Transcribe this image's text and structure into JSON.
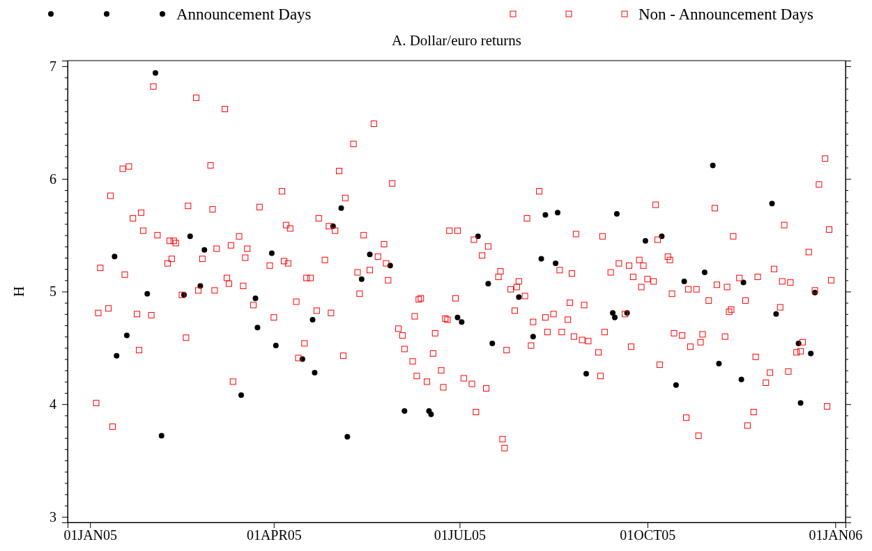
{
  "chart_data": {
    "type": "scatter",
    "title": "A. Dollar/euro returns",
    "ylabel": "H",
    "legend": "top",
    "grid": false,
    "xlim": [
      "2004-12-21",
      "2006-01-06"
    ],
    "xticks": [
      {
        "value": "2005-01-01",
        "label": "01JAN05"
      },
      {
        "value": "2005-04-01",
        "label": "01APR05"
      },
      {
        "value": "2005-07-01",
        "label": "01JUL05"
      },
      {
        "value": "2005-10-01",
        "label": "01OCT05"
      },
      {
        "value": "2006-01-01",
        "label": "01JAN06"
      }
    ],
    "ylim": [
      2.95,
      7.05
    ],
    "yticks": [
      3,
      {
        "value": 3.1,
        "label": null
      },
      {
        "value": 3.2,
        "label": null
      },
      {
        "value": 3.3,
        "label": null
      },
      {
        "value": 3.4,
        "label": null
      },
      {
        "value": 3.5,
        "label": null
      },
      {
        "value": 3.6,
        "label": null
      },
      {
        "value": 3.7,
        "label": null
      },
      {
        "value": 3.8,
        "label": null
      },
      {
        "value": 3.9,
        "label": null
      },
      4,
      {
        "value": 4.1,
        "label": null
      },
      {
        "value": 4.2,
        "label": null
      },
      {
        "value": 4.3,
        "label": null
      },
      {
        "value": 4.4,
        "label": null
      },
      {
        "value": 4.5,
        "label": null
      },
      {
        "value": 4.6,
        "label": null
      },
      {
        "value": 4.7,
        "label": null
      },
      {
        "value": 4.8,
        "label": null
      },
      {
        "value": 4.9,
        "label": null
      },
      5,
      {
        "value": 5.1,
        "label": null
      },
      {
        "value": 5.2,
        "label": null
      },
      {
        "value": 5.3,
        "label": null
      },
      {
        "value": 5.4,
        "label": null
      },
      {
        "value": 5.5,
        "label": null
      },
      {
        "value": 5.6,
        "label": null
      },
      {
        "value": 5.7,
        "label": null
      },
      {
        "value": 5.8,
        "label": null
      },
      {
        "value": 5.9,
        "label": null
      },
      6,
      {
        "value": 6.1,
        "label": null
      },
      {
        "value": 6.2,
        "label": null
      },
      {
        "value": 6.3,
        "label": null
      },
      {
        "value": 6.4,
        "label": null
      },
      {
        "value": 6.5,
        "label": null
      },
      {
        "value": 6.6,
        "label": null
      },
      {
        "value": 6.7,
        "label": null
      },
      {
        "value": 6.8,
        "label": null
      },
      {
        "value": 6.9,
        "label": null
      },
      7
    ],
    "series": [
      {
        "name": "Announcement Days",
        "color": "#000000",
        "marker": "circle",
        "x": [
          "2005-01-13",
          "2005-01-14",
          "2005-01-19",
          "2005-01-29",
          "2005-02-02",
          "2005-02-05",
          "2005-02-16",
          "2005-02-19",
          "2005-02-24",
          "2005-02-26",
          "2005-03-16",
          "2005-03-23",
          "2005-03-24",
          "2005-03-31",
          "2005-04-02",
          "2005-04-15",
          "2005-04-20",
          "2005-04-21",
          "2005-04-30",
          "2005-05-04",
          "2005-05-07",
          "2005-05-14",
          "2005-05-18",
          "2005-05-28",
          "2005-06-04",
          "2005-06-16",
          "2005-06-17",
          "2005-06-30",
          "2005-07-02",
          "2005-07-10",
          "2005-07-15",
          "2005-07-17",
          "2005-07-30",
          "2005-08-06",
          "2005-08-10",
          "2005-08-12",
          "2005-08-17",
          "2005-08-18",
          "2005-09-01",
          "2005-09-14",
          "2005-09-15",
          "2005-09-16",
          "2005-09-21",
          "2005-09-30",
          "2005-10-08",
          "2005-10-15",
          "2005-10-19",
          "2005-10-29",
          "2005-11-02",
          "2005-11-05",
          "2005-11-16",
          "2005-11-17",
          "2005-12-01",
          "2005-12-03",
          "2005-12-14",
          "2005-12-15",
          "2005-12-20",
          "2005-12-22"
        ],
        "values": [
          5.31,
          4.43,
          4.61,
          4.98,
          6.94,
          3.72,
          4.97,
          5.49,
          5.05,
          5.37,
          4.08,
          4.94,
          4.68,
          5.34,
          4.52,
          4.4,
          4.75,
          4.28,
          5.58,
          5.74,
          3.71,
          5.11,
          5.33,
          5.23,
          3.94,
          3.94,
          3.91,
          4.77,
          4.73,
          5.49,
          5.07,
          4.54,
          4.95,
          4.6,
          5.29,
          5.68,
          5.25,
          5.7,
          4.27,
          4.81,
          4.77,
          5.69,
          4.81,
          5.45,
          5.49,
          4.17,
          5.09,
          5.17,
          6.12,
          4.36,
          4.22,
          5.08,
          5.78,
          4.8,
          4.54,
          4.01,
          4.45,
          4.99
        ]
      },
      {
        "name": "Non - Announcement Days",
        "color": "#ff0000",
        "marker": "square",
        "x": [
          "2005-01-04",
          "2005-01-05",
          "2005-01-06",
          "2005-01-10",
          "2005-01-11",
          "2005-01-12",
          "2005-01-17",
          "2005-01-18",
          "2005-01-20",
          "2005-01-22",
          "2005-01-24",
          "2005-01-25",
          "2005-01-26",
          "2005-01-27",
          "2005-01-31",
          "2005-02-01",
          "2005-02-03",
          "2005-02-08",
          "2005-02-09",
          "2005-02-10",
          "2005-02-11",
          "2005-02-12",
          "2005-02-15",
          "2005-02-17",
          "2005-02-18",
          "2005-02-22",
          "2005-02-23",
          "2005-02-25",
          "2005-03-01",
          "2005-03-02",
          "2005-03-03",
          "2005-03-04",
          "2005-03-08",
          "2005-03-09",
          "2005-03-10",
          "2005-03-11",
          "2005-03-12",
          "2005-03-15",
          "2005-03-17",
          "2005-03-18",
          "2005-03-19",
          "2005-03-22",
          "2005-03-25",
          "2005-03-30",
          "2005-04-01",
          "2005-04-05",
          "2005-04-06",
          "2005-04-07",
          "2005-04-08",
          "2005-04-09",
          "2005-04-12",
          "2005-04-13",
          "2005-04-16",
          "2005-04-17",
          "2005-04-19",
          "2005-04-22",
          "2005-04-23",
          "2005-04-26",
          "2005-04-28",
          "2005-04-29",
          "2005-05-01",
          "2005-05-03",
          "2005-05-05",
          "2005-05-06",
          "2005-05-10",
          "2005-05-12",
          "2005-05-13",
          "2005-05-15",
          "2005-05-18",
          "2005-05-20",
          "2005-05-22",
          "2005-05-25",
          "2005-05-26",
          "2005-05-27",
          "2005-05-29",
          "2005-06-01",
          "2005-06-03",
          "2005-06-04",
          "2005-06-08",
          "2005-06-09",
          "2005-06-10",
          "2005-06-11",
          "2005-06-12",
          "2005-06-15",
          "2005-06-18",
          "2005-06-19",
          "2005-06-22",
          "2005-06-23",
          "2005-06-24",
          "2005-06-25",
          "2005-06-26",
          "2005-06-29",
          "2005-06-30",
          "2005-07-03",
          "2005-07-07",
          "2005-07-08",
          "2005-07-09",
          "2005-07-12",
          "2005-07-14",
          "2005-07-15",
          "2005-07-20",
          "2005-07-21",
          "2005-07-22",
          "2005-07-23",
          "2005-07-24",
          "2005-07-26",
          "2005-07-28",
          "2005-07-29",
          "2005-07-30",
          "2005-08-02",
          "2005-08-03",
          "2005-08-05",
          "2005-08-06",
          "2005-08-09",
          "2005-08-12",
          "2005-08-13",
          "2005-08-16",
          "2005-08-19",
          "2005-08-20",
          "2005-08-23",
          "2005-08-24",
          "2005-08-25",
          "2005-08-26",
          "2005-08-27",
          "2005-08-30",
          "2005-08-31",
          "2005-09-02",
          "2005-09-07",
          "2005-09-08",
          "2005-09-09",
          "2005-09-10",
          "2005-09-13",
          "2005-09-17",
          "2005-09-20",
          "2005-09-22",
          "2005-09-23",
          "2005-09-24",
          "2005-09-27",
          "2005-09-28",
          "2005-09-29",
          "2005-10-01",
          "2005-10-04",
          "2005-10-05",
          "2005-10-06",
          "2005-10-07",
          "2005-10-11",
          "2005-10-12",
          "2005-10-13",
          "2005-10-14",
          "2005-10-18",
          "2005-10-20",
          "2005-10-21",
          "2005-10-22",
          "2005-10-25",
          "2005-10-26",
          "2005-10-27",
          "2005-10-28",
          "2005-10-31",
          "2005-11-03",
          "2005-11-04",
          "2005-11-08",
          "2005-11-09",
          "2005-11-10",
          "2005-11-11",
          "2005-11-12",
          "2005-11-15",
          "2005-11-18",
          "2005-11-19",
          "2005-11-22",
          "2005-11-23",
          "2005-11-24",
          "2005-11-28",
          "2005-11-30",
          "2005-12-02",
          "2005-12-05",
          "2005-12-06",
          "2005-12-07",
          "2005-12-09",
          "2005-12-10",
          "2005-12-13",
          "2005-12-15",
          "2005-12-16",
          "2005-12-19",
          "2005-12-22",
          "2005-12-24",
          "2005-12-27",
          "2005-12-28",
          "2005-12-29",
          "2005-12-30"
        ],
        "values": [
          4.01,
          4.81,
          5.21,
          4.85,
          5.85,
          3.8,
          6.09,
          5.15,
          6.11,
          5.65,
          4.8,
          4.48,
          5.7,
          5.54,
          4.79,
          6.82,
          5.5,
          5.25,
          5.45,
          5.29,
          5.45,
          5.43,
          4.97,
          4.59,
          5.76,
          6.72,
          5.01,
          5.29,
          6.12,
          5.73,
          5.01,
          5.38,
          6.62,
          5.12,
          5.07,
          5.41,
          4.2,
          5.49,
          5.05,
          5.3,
          5.38,
          4.88,
          5.75,
          5.23,
          4.77,
          5.89,
          5.27,
          5.59,
          5.25,
          5.56,
          4.91,
          4.41,
          4.54,
          5.12,
          5.12,
          4.83,
          5.65,
          5.28,
          5.58,
          4.81,
          5.54,
          6.07,
          4.43,
          5.83,
          6.31,
          5.17,
          4.98,
          5.5,
          5.19,
          6.49,
          5.31,
          5.42,
          5.25,
          5.1,
          5.96,
          4.67,
          4.61,
          4.49,
          4.38,
          4.78,
          4.25,
          4.93,
          4.94,
          4.2,
          4.45,
          4.63,
          4.3,
          4.15,
          4.76,
          4.75,
          5.54,
          4.94,
          5.54,
          4.23,
          4.18,
          5.46,
          3.93,
          5.32,
          4.14,
          5.4,
          5.13,
          5.18,
          3.69,
          3.61,
          4.48,
          5.02,
          4.83,
          5.04,
          5.09,
          4.96,
          5.65,
          4.52,
          4.73,
          5.89,
          4.77,
          4.64,
          4.8,
          5.19,
          4.64,
          4.75,
          4.9,
          5.16,
          4.6,
          5.51,
          4.57,
          4.88,
          4.56,
          4.46,
          4.25,
          5.49,
          4.64,
          5.17,
          5.25,
          4.8,
          5.23,
          4.51,
          5.13,
          5.28,
          5.04,
          5.23,
          5.11,
          5.09,
          5.77,
          5.46,
          4.35,
          5.31,
          5.28,
          4.98,
          4.63,
          4.61,
          3.88,
          5.02,
          4.51,
          5.02,
          3.72,
          4.55,
          4.62,
          4.92,
          5.74,
          5.06,
          4.6,
          5.04,
          4.82,
          4.84,
          5.49,
          5.12,
          4.92,
          3.81,
          3.93,
          4.42,
          5.13,
          4.19,
          4.28,
          5.2,
          4.86,
          5.09,
          5.59,
          4.29,
          5.08,
          4.46,
          4.47,
          4.55,
          5.35,
          5.01,
          5.95,
          6.18,
          3.98,
          5.55,
          5.1
        ]
      }
    ]
  }
}
